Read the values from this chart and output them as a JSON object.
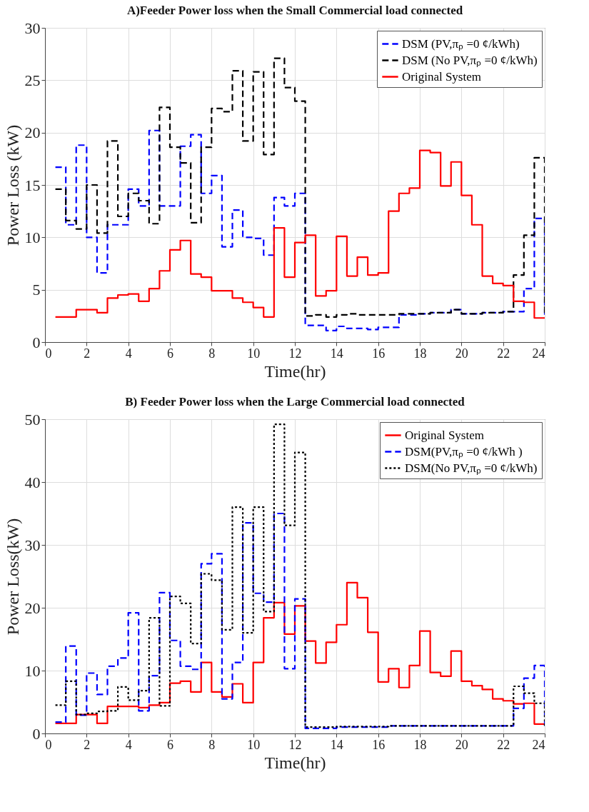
{
  "chart_data": [
    {
      "type": "step",
      "title": "A)Feeder Power loss when the Small Commercial load connected",
      "xlabel": "Time(hr)",
      "ylabel": "Power Loss (kW)",
      "x": [
        0.5,
        1.0,
        1.5,
        2.0,
        2.5,
        3.0,
        3.5,
        4.0,
        4.5,
        5.0,
        5.5,
        6.0,
        6.5,
        7.0,
        7.5,
        8.0,
        8.5,
        9.0,
        9.5,
        10.0,
        10.5,
        11.0,
        11.5,
        12.0,
        12.5,
        13.0,
        13.5,
        14.0,
        14.5,
        15.0,
        15.5,
        16.0,
        16.5,
        17.0,
        17.5,
        18.0,
        18.5,
        19.0,
        19.5,
        20.0,
        20.5,
        21.0,
        21.5,
        22.0,
        22.5,
        23.0,
        23.5,
        24.0
      ],
      "series": [
        {
          "name": "DSM (PV,πₚ =0 ¢/kWh)",
          "color": "#0000ff",
          "line_style": "dashed",
          "values": [
            16.7,
            11.2,
            18.8,
            10.0,
            6.6,
            11.2,
            11.2,
            14.6,
            13.0,
            20.2,
            13.0,
            13.0,
            18.7,
            19.8,
            14.2,
            15.9,
            9.1,
            12.6,
            10.0,
            9.9,
            8.3,
            13.8,
            13.0,
            14.2,
            1.6,
            1.6,
            1.1,
            1.5,
            1.3,
            1.3,
            1.2,
            1.4,
            1.4,
            2.6,
            2.6,
            2.7,
            2.8,
            2.8,
            3.1,
            2.7,
            2.7,
            2.8,
            2.8,
            2.9,
            2.9,
            5.1,
            11.8,
            2.6
          ]
        },
        {
          "name": "DSM (No PV,πₚ =0 ¢/kWh)",
          "color": "#000000",
          "line_style": "dashed",
          "values": [
            14.6,
            11.6,
            10.8,
            15.0,
            10.4,
            19.2,
            12.0,
            14.2,
            13.5,
            11.3,
            22.4,
            18.6,
            17.1,
            11.4,
            18.6,
            22.3,
            22.0,
            25.9,
            19.2,
            25.8,
            17.9,
            27.1,
            24.3,
            23.0,
            2.5,
            2.6,
            2.4,
            2.6,
            2.7,
            2.6,
            2.6,
            2.6,
            2.6,
            2.7,
            2.7,
            2.7,
            2.8,
            2.8,
            3.1,
            2.7,
            2.7,
            2.8,
            2.8,
            2.9,
            6.4,
            10.2,
            17.6,
            2.6
          ]
        },
        {
          "name": "Original System",
          "color": "#ff0000",
          "line_style": "solid",
          "values": [
            2.4,
            2.4,
            3.1,
            3.1,
            2.8,
            4.2,
            4.5,
            4.6,
            3.9,
            5.1,
            6.8,
            8.8,
            9.7,
            6.5,
            6.2,
            4.9,
            4.9,
            4.2,
            3.8,
            3.3,
            2.4,
            10.9,
            6.2,
            9.5,
            10.2,
            4.4,
            4.9,
            10.1,
            6.3,
            8.1,
            6.4,
            6.6,
            12.5,
            14.2,
            14.7,
            18.3,
            18.1,
            14.9,
            17.2,
            14.0,
            11.2,
            6.3,
            5.6,
            5.4,
            3.9,
            3.8,
            2.3,
            2.3
          ]
        }
      ],
      "xlim": [
        0,
        24
      ],
      "xticks": [
        0,
        2,
        4,
        6,
        8,
        10,
        12,
        14,
        16,
        18,
        20,
        22,
        24
      ],
      "ylim": [
        0,
        30
      ],
      "yticks": [
        0,
        5,
        10,
        15,
        20,
        25,
        30
      ],
      "grid": true,
      "legend": "top right"
    },
    {
      "type": "step",
      "title": "B) Feeder Power loss when the Large Commercial load connected",
      "xlabel": "Time(hr)",
      "ylabel": "Power Loss(kW)",
      "x": [
        0.5,
        1.0,
        1.5,
        2.0,
        2.5,
        3.0,
        3.5,
        4.0,
        4.5,
        5.0,
        5.5,
        6.0,
        6.5,
        7.0,
        7.5,
        8.0,
        8.5,
        9.0,
        9.5,
        10.0,
        10.5,
        11.0,
        11.5,
        12.0,
        12.5,
        13.0,
        13.5,
        14.0,
        14.5,
        15.0,
        15.5,
        16.0,
        16.5,
        17.0,
        17.5,
        18.0,
        18.5,
        19.0,
        19.5,
        20.0,
        20.5,
        21.0,
        21.5,
        22.0,
        22.5,
        23.0,
        23.5,
        24.0
      ],
      "series": [
        {
          "name": "Original System",
          "color": "#ff0000",
          "line_style": "solid",
          "values": [
            1.6,
            1.6,
            3.0,
            3.0,
            1.6,
            4.3,
            4.3,
            4.3,
            4.1,
            4.5,
            4.9,
            8.0,
            8.3,
            6.6,
            11.3,
            6.6,
            5.8,
            7.9,
            4.9,
            11.3,
            18.4,
            20.8,
            15.8,
            20.3,
            14.7,
            11.2,
            14.5,
            17.3,
            24.0,
            21.6,
            16.1,
            8.2,
            10.3,
            7.3,
            10.8,
            16.3,
            9.7,
            9.1,
            13.1,
            8.3,
            7.6,
            7.0,
            5.5,
            5.2,
            4.7,
            4.8,
            1.5,
            1.5
          ]
        },
        {
          "name": "DSM(PV,πₚ =0 ¢/kWh )",
          "color": "#0000ff",
          "line_style": "dashed",
          "values": [
            1.8,
            13.9,
            2.9,
            9.6,
            6.2,
            10.7,
            12.0,
            19.2,
            3.6,
            9.2,
            22.4,
            14.8,
            10.7,
            10.2,
            27.0,
            28.6,
            5.5,
            11.3,
            33.5,
            22.3,
            20.9,
            35.0,
            10.3,
            21.4,
            0.8,
            0.8,
            0.8,
            1.0,
            1.0,
            1.0,
            1.0,
            1.0,
            1.2,
            1.2,
            1.2,
            1.2,
            1.2,
            1.2,
            1.2,
            1.2,
            1.2,
            1.2,
            1.2,
            1.2,
            4.0,
            8.8,
            10.8,
            1.2
          ]
        },
        {
          "name": "DSM(No PV,πₚ =0 ¢/kWh)",
          "color": "#000000",
          "line_style": "dotted",
          "values": [
            4.5,
            8.3,
            3.0,
            3.2,
            3.5,
            3.6,
            7.4,
            5.3,
            6.8,
            18.4,
            4.4,
            21.8,
            20.7,
            14.3,
            25.4,
            24.4,
            16.5,
            36.0,
            16.0,
            36.0,
            19.4,
            49.2,
            33.1,
            44.7,
            1.0,
            1.0,
            1.0,
            1.1,
            1.1,
            1.1,
            1.1,
            1.1,
            1.2,
            1.2,
            1.2,
            1.2,
            1.2,
            1.2,
            1.2,
            1.2,
            1.2,
            1.2,
            1.2,
            1.2,
            7.5,
            6.4,
            4.8,
            1.2
          ]
        }
      ],
      "xlim": [
        0,
        24
      ],
      "xticks": [
        0,
        2,
        4,
        6,
        8,
        10,
        12,
        14,
        16,
        18,
        20,
        22,
        24
      ],
      "ylim": [
        0,
        50
      ],
      "yticks": [
        0,
        10,
        20,
        30,
        40,
        50
      ],
      "grid": true,
      "legend": "top right"
    }
  ]
}
